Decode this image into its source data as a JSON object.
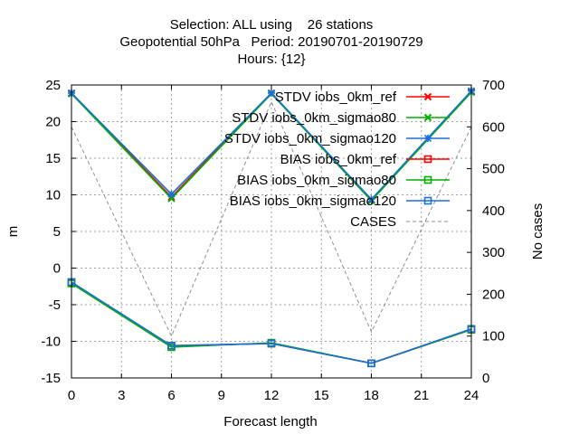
{
  "chart_data": {
    "type": "line",
    "title_lines": [
      "Selection: ALL using    26 stations",
      "Geopotential 50hPa   Period: 20190701-20190729",
      "Hours: {12}"
    ],
    "xlabel": "Forecast length",
    "ylabel": "m",
    "y2label": "No cases",
    "xlim": [
      0,
      24
    ],
    "ylim": [
      -15,
      25
    ],
    "y2lim": [
      0,
      700
    ],
    "x_ticks": [
      0,
      3,
      6,
      9,
      12,
      15,
      18,
      21,
      24
    ],
    "y_ticks": [
      -15,
      -10,
      -5,
      0,
      5,
      10,
      15,
      20,
      25
    ],
    "y2_ticks": [
      0,
      100,
      200,
      300,
      400,
      500,
      600,
      700
    ],
    "grid": true,
    "legend_position": "top-right",
    "x": [
      0,
      6,
      12,
      18,
      24
    ],
    "series": [
      {
        "name": "STDV iobs_0km_ref",
        "color": "#ff0000",
        "marker": "cross",
        "axis": "y",
        "values": [
          23.9,
          9.7,
          23.9,
          9.3,
          24.1
        ]
      },
      {
        "name": "STDV iobs_0km_sigmao80",
        "color": "#00b000",
        "marker": "cross",
        "axis": "y",
        "values": [
          23.8,
          9.5,
          23.8,
          9.2,
          24.0
        ]
      },
      {
        "name": "STDV iobs_0km_sigmao120",
        "color": "#1a6fd8",
        "marker": "star",
        "axis": "y",
        "values": [
          23.9,
          10.1,
          23.9,
          9.4,
          24.2
        ]
      },
      {
        "name": "BIAS iobs_0km_ref",
        "color": "#ff0000",
        "marker": "square",
        "axis": "y",
        "values": [
          -2.0,
          -10.6,
          -10.3,
          -13.0,
          -8.4
        ]
      },
      {
        "name": "BIAS iobs_0km_sigmao80",
        "color": "#00b000",
        "marker": "square",
        "axis": "y",
        "values": [
          -2.1,
          -10.8,
          -10.2,
          -13.0,
          -8.4
        ]
      },
      {
        "name": "BIAS iobs_0km_sigmao120",
        "color": "#1a6fd8",
        "marker": "square",
        "axis": "y",
        "values": [
          -1.9,
          -10.6,
          -10.3,
          -13.0,
          -8.3
        ]
      },
      {
        "name": "CASES",
        "color": "#909090",
        "marker": "none",
        "dashed": true,
        "axis": "y2",
        "values": [
          600,
          100,
          660,
          110,
          600
        ]
      }
    ]
  }
}
